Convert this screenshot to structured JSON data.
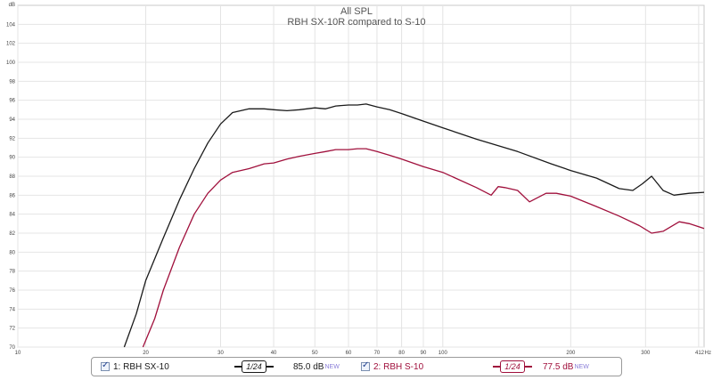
{
  "chart_data": {
    "type": "line",
    "title": "All SPL",
    "subtitle": "RBH SX-10R compared to S-10",
    "yunit": "dB",
    "xunit": "Hz",
    "xscale": "log",
    "xlim": [
      10,
      412
    ],
    "ylim": [
      70,
      106
    ],
    "grid": true,
    "y_ticks": [
      70,
      72,
      74,
      76,
      78,
      80,
      82,
      84,
      86,
      88,
      90,
      92,
      94,
      96,
      98,
      100,
      102,
      104
    ],
    "x_ticks": [
      {
        "value": 10,
        "label": "10"
      },
      {
        "value": 20,
        "label": "20"
      },
      {
        "value": 30,
        "label": "30"
      },
      {
        "value": 40,
        "label": "40"
      },
      {
        "value": 50,
        "label": "50"
      },
      {
        "value": 60,
        "label": "60"
      },
      {
        "value": 70,
        "label": "70"
      },
      {
        "value": 80,
        "label": "80"
      },
      {
        "value": 90,
        "label": "90"
      },
      {
        "value": 100,
        "label": "100"
      },
      {
        "value": 200,
        "label": "200"
      },
      {
        "value": 300,
        "label": "300"
      },
      {
        "value": 412,
        "label": "412"
      }
    ],
    "series": [
      {
        "name": "1: RBH SX-10",
        "color": "#1a1a1a",
        "x": [
          17.8,
          19,
          20,
          22,
          24,
          26,
          28,
          30,
          32,
          35,
          38,
          40,
          43,
          46,
          50,
          53,
          56,
          60,
          63,
          66,
          70,
          75,
          80,
          90,
          100,
          120,
          150,
          180,
          200,
          230,
          260,
          280,
          295,
          310,
          330,
          350,
          380,
          412
        ],
        "y": [
          70,
          73.5,
          77,
          81.5,
          85.5,
          88.8,
          91.5,
          93.5,
          94.7,
          95.1,
          95.1,
          95.0,
          94.9,
          95.0,
          95.2,
          95.1,
          95.4,
          95.5,
          95.5,
          95.6,
          95.3,
          95.0,
          94.6,
          93.8,
          93.1,
          91.9,
          90.6,
          89.3,
          88.6,
          87.8,
          86.7,
          86.5,
          87.2,
          88.0,
          86.5,
          86.0,
          86.2,
          86.3
        ]
      },
      {
        "name": "2: RBH S-10",
        "color": "#a0103c",
        "x": [
          19.7,
          21,
          22,
          24,
          26,
          28,
          30,
          32,
          35,
          38,
          40,
          43,
          46,
          50,
          53,
          56,
          60,
          63,
          66,
          70,
          75,
          80,
          90,
          100,
          120,
          130,
          135,
          140,
          150,
          160,
          175,
          185,
          200,
          230,
          260,
          290,
          310,
          330,
          360,
          380,
          412
        ],
        "y": [
          70,
          73,
          76,
          80.5,
          84,
          86.2,
          87.6,
          88.4,
          88.8,
          89.3,
          89.4,
          89.8,
          90.1,
          90.4,
          90.6,
          90.8,
          90.8,
          90.9,
          90.9,
          90.6,
          90.2,
          89.8,
          89.0,
          88.4,
          86.8,
          86.0,
          86.9,
          86.8,
          86.5,
          85.3,
          86.2,
          86.2,
          85.9,
          84.8,
          83.8,
          82.8,
          82.0,
          82.2,
          83.2,
          83.0,
          82.5
        ]
      }
    ]
  },
  "legend": [
    {
      "label": "1: RBH SX-10",
      "smoothing": "1/24",
      "level": "85.0 dB",
      "badge": "NEW",
      "color": "#1a1a1a"
    },
    {
      "label": "2: RBH S-10",
      "smoothing": "1/24",
      "level": "77.5 dB",
      "badge": "NEW",
      "color": "#a0103c"
    }
  ]
}
